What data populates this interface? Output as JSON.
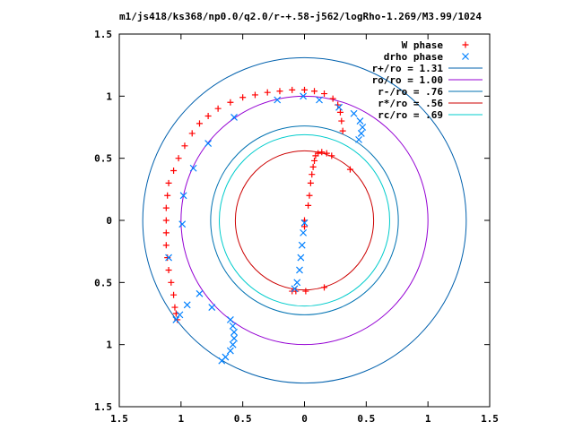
{
  "chart_data": {
    "type": "scatter",
    "title": "m1/js418/ks368/np0.0/q2.0/r-+.58-j562/logRho-1.269/M3.99/1024",
    "xlim": [
      -1.5,
      1.5
    ],
    "ylim": [
      -1.5,
      1.5
    ],
    "xticks": [
      -1.5,
      -1,
      -0.5,
      0,
      0.5,
      1,
      1.5
    ],
    "xtick_labels": [
      "1.5",
      "1",
      "0.5",
      "0",
      "0.5",
      "1",
      "1.5"
    ],
    "yticks": [
      1.5,
      1,
      0.5,
      0,
      -0.5,
      -1,
      -1.5
    ],
    "ytick_labels": [
      "1.5",
      "1",
      "0.5",
      "0",
      "0.5",
      "1",
      "1.5"
    ],
    "grid": false,
    "legend_position": "top-right",
    "series": [
      {
        "name": "W phase",
        "kind": "points",
        "marker": "plus",
        "color": "#ff0000",
        "points": [
          [
            -0.1,
            -0.57
          ],
          [
            -0.07,
            -0.57
          ],
          [
            0.01,
            -0.57
          ],
          [
            0.16,
            -0.54
          ],
          [
            0.0,
            -0.05
          ],
          [
            0.0,
            0.0
          ],
          [
            0.03,
            0.12
          ],
          [
            0.04,
            0.2
          ],
          [
            0.05,
            0.3
          ],
          [
            0.06,
            0.37
          ],
          [
            0.07,
            0.43
          ],
          [
            0.08,
            0.48
          ],
          [
            0.09,
            0.52
          ],
          [
            0.11,
            0.54
          ],
          [
            0.14,
            0.55
          ],
          [
            0.18,
            0.54
          ],
          [
            0.22,
            0.52
          ],
          [
            0.37,
            0.41
          ],
          [
            -1.03,
            -0.8
          ],
          [
            -1.04,
            -0.75
          ],
          [
            -1.05,
            -0.7
          ],
          [
            -1.06,
            -0.6
          ],
          [
            -1.08,
            -0.5
          ],
          [
            -1.1,
            -0.4
          ],
          [
            -1.11,
            -0.3
          ],
          [
            -1.12,
            -0.2
          ],
          [
            -1.12,
            -0.1
          ],
          [
            -1.12,
            0.0
          ],
          [
            -1.12,
            0.1
          ],
          [
            -1.11,
            0.2
          ],
          [
            -1.1,
            0.3
          ],
          [
            -1.06,
            0.4
          ],
          [
            -1.02,
            0.5
          ],
          [
            -0.97,
            0.6
          ],
          [
            -0.91,
            0.7
          ],
          [
            -0.85,
            0.78
          ],
          [
            -0.78,
            0.84
          ],
          [
            -0.7,
            0.9
          ],
          [
            -0.6,
            0.95
          ],
          [
            -0.5,
            0.99
          ],
          [
            -0.4,
            1.01
          ],
          [
            -0.3,
            1.03
          ],
          [
            -0.2,
            1.04
          ],
          [
            -0.1,
            1.05
          ],
          [
            0.0,
            1.05
          ],
          [
            0.08,
            1.04
          ],
          [
            0.16,
            1.02
          ],
          [
            0.23,
            0.98
          ],
          [
            0.27,
            0.93
          ],
          [
            0.29,
            0.87
          ],
          [
            0.3,
            0.8
          ],
          [
            0.31,
            0.72
          ]
        ]
      },
      {
        "name": "drho phase",
        "kind": "points",
        "marker": "cross",
        "color": "#0080ff",
        "points": [
          [
            0.0,
            -0.02
          ],
          [
            -0.01,
            -0.1
          ],
          [
            -0.02,
            -0.2
          ],
          [
            -0.03,
            -0.3
          ],
          [
            -0.04,
            -0.4
          ],
          [
            -0.06,
            -0.5
          ],
          [
            -0.08,
            -0.55
          ],
          [
            -1.04,
            -0.8
          ],
          [
            -1.01,
            -0.76
          ],
          [
            -0.95,
            -0.68
          ],
          [
            -0.85,
            -0.59
          ],
          [
            -0.75,
            -0.7
          ],
          [
            -0.6,
            -0.8
          ],
          [
            -0.58,
            -0.85
          ],
          [
            -0.57,
            -0.9
          ],
          [
            -0.57,
            -0.95
          ],
          [
            -0.58,
            -1.0
          ],
          [
            -0.6,
            -1.05
          ],
          [
            -0.64,
            -1.1
          ],
          [
            -0.67,
            -1.13
          ],
          [
            -1.1,
            -0.3
          ],
          [
            -0.99,
            -0.03
          ],
          [
            -0.98,
            0.2
          ],
          [
            -0.9,
            0.42
          ],
          [
            -0.78,
            0.62
          ],
          [
            -0.57,
            0.83
          ],
          [
            -0.22,
            0.97
          ],
          [
            -0.01,
            1.0
          ],
          [
            0.12,
            0.97
          ],
          [
            0.28,
            0.91
          ],
          [
            0.4,
            0.86
          ],
          [
            0.45,
            0.8
          ],
          [
            0.47,
            0.75
          ],
          [
            0.46,
            0.7
          ],
          [
            0.44,
            0.65
          ]
        ]
      },
      {
        "name": "r+/ro = 1.31",
        "kind": "circle",
        "r": 1.31,
        "color": "#0060ad"
      },
      {
        "name": "ro/ro = 1.00",
        "kind": "circle",
        "r": 1.0,
        "color": "#9400d3"
      },
      {
        "name": "r-/ro = .76",
        "kind": "circle",
        "r": 0.76,
        "color": "#0072b2"
      },
      {
        "name": "r*/ro = .56",
        "kind": "circle",
        "r": 0.56,
        "color": "#cc0000"
      },
      {
        "name": "rc/ro = .69",
        "kind": "circle",
        "r": 0.69,
        "color": "#00cccc"
      }
    ]
  }
}
